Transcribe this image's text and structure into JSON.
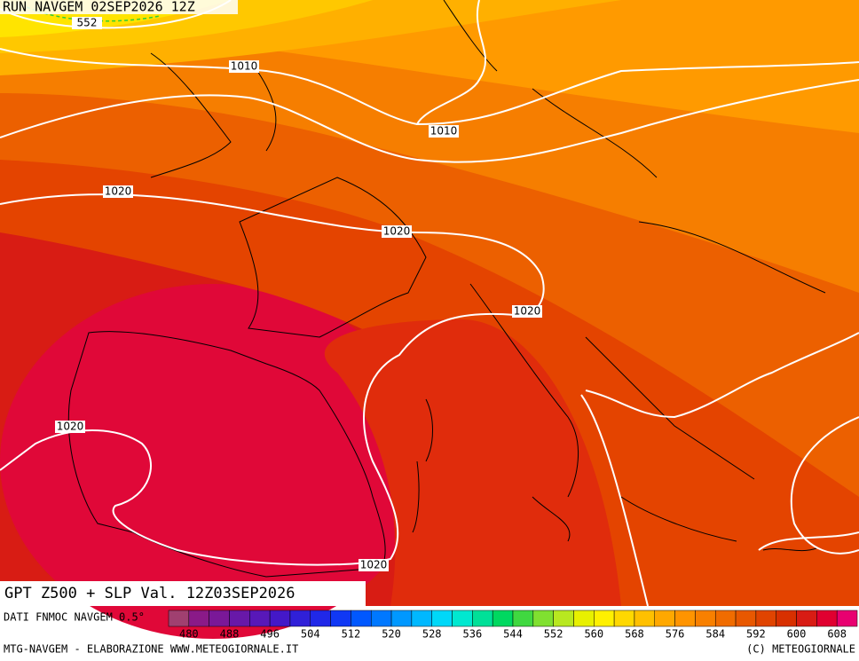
{
  "header": "RUN NAVGEM 02SEP2026 12Z",
  "contour_labels": [
    552,
    1010,
    1010,
    1020,
    1020,
    1020,
    1020,
    1020
  ],
  "title": "GPT Z500 + SLP Val. 12Z03SEP2026",
  "source": "DATI FNMOC NAVGEM 0.5°",
  "colorbar": {
    "colors": [
      "#a04070",
      "#8a1a88",
      "#7a1898",
      "#6818a8",
      "#5818b8",
      "#4418c8",
      "#3020d8",
      "#2028e8",
      "#1038f4",
      "#0058ff",
      "#0078ff",
      "#0098ff",
      "#00b8ff",
      "#00d8f8",
      "#00e8d0",
      "#00e098",
      "#00d860",
      "#40d840",
      "#80e030",
      "#b8e820",
      "#e8f000",
      "#fff000",
      "#ffd800",
      "#ffc000",
      "#ffa800",
      "#ff9400",
      "#f88000",
      "#f06c00",
      "#e85800",
      "#e04400",
      "#d83000",
      "#d81c14",
      "#e00030",
      "#e80070"
    ],
    "labels": [
      480,
      488,
      496,
      504,
      512,
      520,
      528,
      536,
      544,
      552,
      560,
      568,
      576,
      584,
      592,
      600,
      608
    ]
  },
  "footer_left": "MTG-NAVGEM - ELABORAZIONE WWW.METEOGIORNALE.IT",
  "footer_right": "(C) METEOGIORNALE"
}
